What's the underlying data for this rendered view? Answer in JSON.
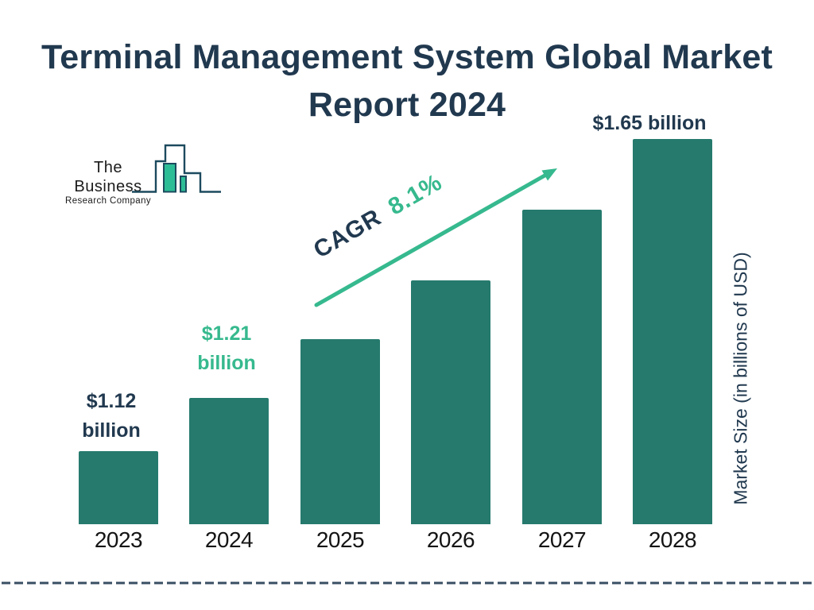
{
  "title": {
    "line1": "Terminal Management System Global Market",
    "line2": "Report 2024"
  },
  "logo": {
    "name": "The Business",
    "subname": "Research Company",
    "outline_color": "#1C4A5E",
    "fill_color": "#2DBD96"
  },
  "cagr": {
    "label": "CAGR",
    "value": "8.1%"
  },
  "right_axis_label": "Market Size (in billions of USD)",
  "colors": {
    "navy": "#21394F",
    "accent_green": "#36B98E",
    "bar_teal": "#257A6D",
    "dash_line": "#3A4F63"
  },
  "chart_data": {
    "type": "bar",
    "title": "Terminal Management System Global Market Report 2024",
    "categories": [
      "2023",
      "2024",
      "2025",
      "2026",
      "2027",
      "2028"
    ],
    "values": [
      1.12,
      1.21,
      1.31,
      1.41,
      1.53,
      1.65
    ],
    "unit": "billions of USD",
    "ylabel": "Market Size (in billions of USD)",
    "grid": false,
    "legend": false,
    "annotations": {
      "cagr_text": "CAGR 8.1%",
      "bar_labels": [
        {
          "category": "2023",
          "line1": "$1.12",
          "line2": "billion"
        },
        {
          "category": "2024",
          "line1": "$1.21",
          "line2": "billion"
        },
        {
          "category": "2028",
          "line1": "$1.65 billion",
          "line2": ""
        }
      ]
    }
  }
}
